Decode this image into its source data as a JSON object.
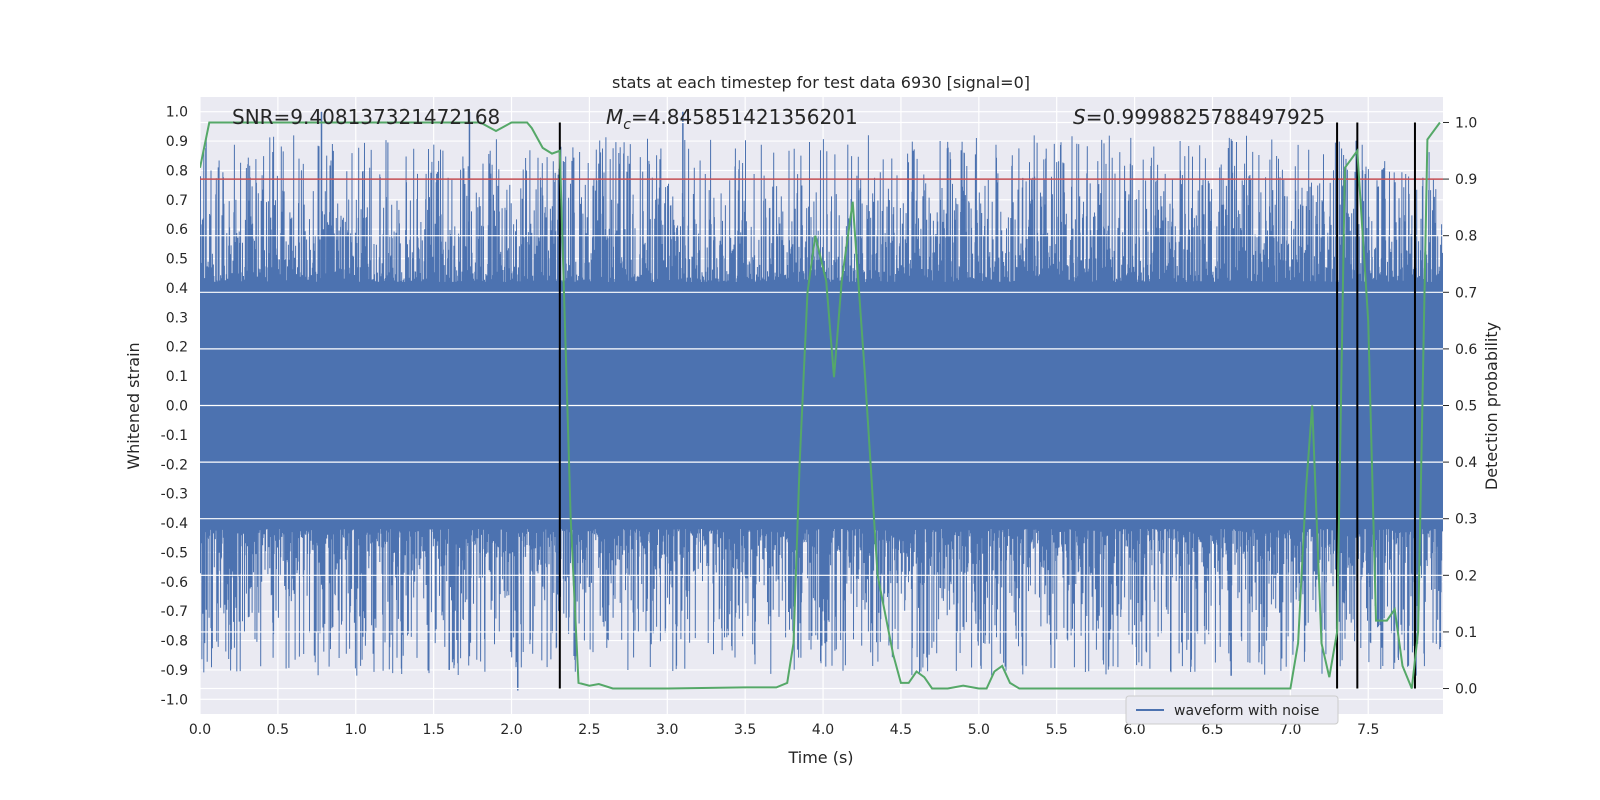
{
  "chart_data": {
    "type": "line",
    "title": "stats at each timestep for test data 6930 [signal=0]",
    "xlabel": "Time (s)",
    "ylabel_left": "Whitened strain",
    "ylabel_right": "Detection probability",
    "xlim": [
      0.0,
      7.98
    ],
    "ylim_left": [
      -1.05,
      1.05
    ],
    "ylim_right": [
      -0.045,
      1.045
    ],
    "x_ticks": [
      "0.0",
      "0.5",
      "1.0",
      "1.5",
      "2.0",
      "2.5",
      "3.0",
      "3.5",
      "4.0",
      "4.5",
      "5.0",
      "5.5",
      "6.0",
      "6.5",
      "7.0",
      "7.5"
    ],
    "y_left_ticks": [
      "1.0",
      "0.9",
      "0.8",
      "0.7",
      "0.6",
      "0.5",
      "0.4",
      "0.3",
      "0.2",
      "0.1",
      "0.0",
      "-0.1",
      "-0.2",
      "-0.3",
      "-0.4",
      "-0.5",
      "-0.6",
      "-0.7",
      "-0.8",
      "-0.9",
      "-1.0"
    ],
    "y_right_ticks": [
      "1.0",
      "0.9",
      "0.8",
      "0.7",
      "0.6",
      "0.5",
      "0.4",
      "0.3",
      "0.2",
      "0.1",
      "0.0"
    ],
    "annotations": {
      "snr": "SNR=9.408137321472168",
      "mc_symbol": "M",
      "mc_sub": "c",
      "mc_value": "=4.845851421356201",
      "s_symbol": "S",
      "s_value": "=0.9998825788497925"
    },
    "threshold": 0.9,
    "detection_lines": [
      2.31,
      7.3,
      7.43,
      7.8
    ],
    "waveform": {
      "name": "waveform with noise",
      "color": "#4c72b0",
      "band_amplitude": 0.42,
      "notable_spikes": [
        {
          "x": 0.78,
          "y": 1.0
        },
        {
          "x": 1.73,
          "y": 1.0
        },
        {
          "x": 3.1,
          "y": 1.0
        },
        {
          "x": 2.04,
          "y": -0.97
        },
        {
          "x": 0.2,
          "y": -0.83
        },
        {
          "x": 1.6,
          "y": -0.9
        },
        {
          "x": 6.62,
          "y": -0.92
        }
      ]
    },
    "probability": {
      "color": "#55a868",
      "x": [
        0.0,
        0.06,
        0.2,
        0.5,
        1.0,
        1.5,
        1.8,
        1.9,
        2.0,
        2.1,
        2.13,
        2.2,
        2.26,
        2.31,
        2.38,
        2.43,
        2.5,
        2.56,
        2.65,
        3.0,
        3.5,
        3.7,
        3.77,
        3.81,
        3.85,
        3.9,
        3.95,
        4.02,
        4.07,
        4.12,
        4.19,
        4.27,
        4.35,
        4.45,
        4.5,
        4.55,
        4.6,
        4.65,
        4.7,
        4.8,
        4.9,
        5.0,
        5.05,
        5.1,
        5.15,
        5.2,
        5.26,
        5.3,
        5.5,
        5.9,
        6.5,
        7.0,
        7.05,
        7.1,
        7.14,
        7.2,
        7.25,
        7.3,
        7.35,
        7.43,
        7.5,
        7.55,
        7.62,
        7.67,
        7.72,
        7.78,
        7.82,
        7.88,
        7.96
      ],
      "y": [
        0.92,
        1.0,
        1.0,
        1.0,
        1.0,
        1.0,
        1.0,
        0.985,
        1.0,
        1.0,
        0.99,
        0.955,
        0.945,
        0.95,
        0.3,
        0.01,
        0.005,
        0.008,
        0.0,
        0.0,
        0.002,
        0.002,
        0.01,
        0.08,
        0.4,
        0.7,
        0.8,
        0.72,
        0.55,
        0.72,
        0.86,
        0.55,
        0.2,
        0.06,
        0.01,
        0.01,
        0.03,
        0.02,
        0.0,
        0.0,
        0.005,
        0.0,
        0.0,
        0.03,
        0.04,
        0.01,
        0.0,
        0.0,
        0.0,
        0.0,
        0.0,
        0.0,
        0.08,
        0.35,
        0.5,
        0.08,
        0.02,
        0.1,
        0.92,
        0.95,
        0.65,
        0.12,
        0.12,
        0.14,
        0.04,
        0.0,
        0.1,
        0.97,
        1.0
      ]
    },
    "legend": "waveform with noise",
    "legend_position": "bottom-right",
    "grid": true
  }
}
